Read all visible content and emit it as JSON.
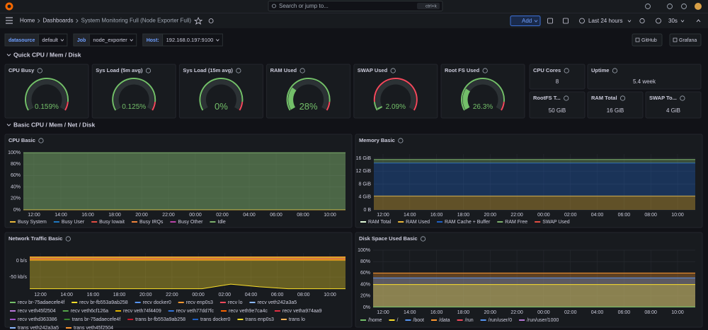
{
  "topbar": {
    "search": "Search or jump to...",
    "shortcut": "ctrl+k"
  },
  "breadcrumb": [
    "Home",
    "Dashboards",
    "System Monitoring Full (Node Exporter Full)"
  ],
  "toolbar": {
    "add": "Add",
    "time_range": "Last 24 hours",
    "refresh": "30s"
  },
  "variables": [
    {
      "label": "datasource",
      "value": "default"
    },
    {
      "label": "Job",
      "value": "node_exporter"
    },
    {
      "label": "Host:",
      "value": "192.168.0.197:9100"
    }
  ],
  "links": [
    "GitHub",
    "Grafana"
  ],
  "rows": [
    "Quick CPU / Mem / Disk",
    "Basic CPU / Mem / Net / Disk"
  ],
  "gauges": [
    {
      "title": "CPU Busy",
      "value": 0.159,
      "label": "0.159%",
      "color": "#73bf69",
      "thresholds": [
        {
          "color": "#73bf69",
          "from": 0
        },
        {
          "color": "#f2495c",
          "from": 90
        }
      ]
    },
    {
      "title": "Sys Load (5m avg)",
      "value": 0.125,
      "label": "0.125%",
      "color": "#73bf69",
      "thresholds": [
        {
          "color": "#73bf69",
          "from": 0
        },
        {
          "color": "#f2495c",
          "from": 90
        }
      ]
    },
    {
      "title": "Sys Load (15m avg)",
      "value": 0,
      "label": "0%",
      "color": "#73bf69",
      "thresholds": [
        {
          "color": "#73bf69",
          "from": 0
        },
        {
          "color": "#f2495c",
          "from": 90
        }
      ]
    },
    {
      "title": "RAM Used",
      "value": 28,
      "label": "28%",
      "color": "#73bf69",
      "thresholds": [
        {
          "color": "#73bf69",
          "from": 0
        },
        {
          "color": "#f2495c",
          "from": 90
        }
      ]
    },
    {
      "title": "SWAP Used",
      "value": 2.09,
      "label": "2.09%",
      "color": "#73bf69",
      "thresholds": [
        {
          "color": "#73bf69",
          "from": 0
        },
        {
          "color": "#f2495c",
          "from": 10
        }
      ]
    },
    {
      "title": "Root FS Used",
      "value": 26.3,
      "label": "26.3%",
      "color": "#73bf69",
      "thresholds": [
        {
          "color": "#73bf69",
          "from": 0
        },
        {
          "color": "#f2495c",
          "from": 90
        }
      ]
    }
  ],
  "stats": [
    {
      "title": "CPU Cores",
      "value": "8"
    },
    {
      "title": "Uptime",
      "value": "5.4 week"
    },
    {
      "title": "RootFS T...",
      "value": "50 GiB"
    },
    {
      "title": "RAM Total",
      "value": "16 GiB"
    },
    {
      "title": "SWAP To...",
      "value": "4 GiB"
    }
  ],
  "panels": [
    {
      "title": "CPU Basic",
      "stacked": true,
      "x": [
        "12:00",
        "14:00",
        "16:00",
        "18:00",
        "20:00",
        "22:00",
        "00:00",
        "02:00",
        "04:00",
        "06:00",
        "08:00",
        "10:00"
      ],
      "ylim": [
        0,
        100
      ],
      "yticks": [
        {
          "value": 0,
          "label": "0%"
        },
        {
          "value": 20,
          "label": "20%"
        },
        {
          "value": 40,
          "label": "40%"
        },
        {
          "value": 60,
          "label": "60%"
        },
        {
          "value": 80,
          "label": "80%"
        },
        {
          "value": 100,
          "label": "100%"
        }
      ],
      "legend": [
        {
          "name": "Busy System",
          "color": "#eab839"
        },
        {
          "name": "Busy User",
          "color": "#1f78c1"
        },
        {
          "name": "Busy Iowait",
          "color": "#e24d42"
        },
        {
          "name": "Busy IRQs",
          "color": "#ef843c"
        },
        {
          "name": "Busy Other",
          "color": "#ba43a9"
        },
        {
          "name": "Idle",
          "color": "#7eb26d"
        }
      ],
      "series": [
        {
          "legend": 0,
          "values": [
            0.1,
            0.1,
            0.1,
            0.1,
            0.1,
            0.1,
            0.1,
            0.1,
            0.1,
            0.1,
            0.1,
            0.1
          ]
        },
        {
          "legend": 5,
          "values": [
            99.8,
            99.8,
            99.8,
            99.8,
            99.8,
            99.8,
            99.8,
            99.8,
            99.8,
            99.8,
            99.8,
            99.8
          ]
        }
      ]
    },
    {
      "title": "Memory Basic",
      "stacked": true,
      "x": [
        "12:00",
        "14:00",
        "16:00",
        "18:00",
        "20:00",
        "22:00",
        "00:00",
        "02:00",
        "04:00",
        "06:00",
        "08:00",
        "10:00"
      ],
      "ylim": [
        0,
        17.3
      ],
      "yticks": [
        {
          "value": 0,
          "label": "0 B"
        },
        {
          "value": 4,
          "label": "4 GiB"
        },
        {
          "value": 8,
          "label": "8 GiB"
        },
        {
          "value": 12,
          "label": "12 GiB"
        },
        {
          "value": 16,
          "label": "16 GiB"
        }
      ],
      "legend": [
        {
          "name": "RAM Total",
          "color": "#e0f9d7"
        },
        {
          "name": "RAM Used",
          "color": "#eab839"
        },
        {
          "name": "RAM Cache + Buffer",
          "color": "#1f60c4"
        },
        {
          "name": "RAM Free",
          "color": "#7eb26d"
        },
        {
          "name": "SWAP Used",
          "color": "#e24d42"
        }
      ],
      "series": [
        {
          "legend": 1,
          "values": [
            4.3,
            4.3,
            4.3,
            4.3,
            4.3,
            4.3,
            4.3,
            4.3,
            4.3,
            4.3,
            4.3,
            4.3
          ]
        },
        {
          "legend": 2,
          "values": [
            10.2,
            10.2,
            10.2,
            10.2,
            10.2,
            10.2,
            10.2,
            10.2,
            10.2,
            10.2,
            10.2,
            10.2
          ]
        },
        {
          "legend": 3,
          "values": [
            1.1,
            1.1,
            1.1,
            1.1,
            1.1,
            1.1,
            1.1,
            1.1,
            1.1,
            1.1,
            1.1,
            1.1
          ]
        }
      ]
    },
    {
      "title": "Network Traffic Basic",
      "stacked": false,
      "x": [
        "12:00",
        "14:00",
        "16:00",
        "18:00",
        "20:00",
        "22:00",
        "00:00",
        "02:00",
        "04:00",
        "06:00",
        "08:00",
        "10:00"
      ],
      "ylim": [
        -89,
        24
      ],
      "yticks": [
        {
          "value": -50,
          "label": "-50 kb/s"
        },
        {
          "value": 0,
          "label": "0 b/s"
        }
      ],
      "legend": [
        {
          "name": "recv br-75adaecefe4f",
          "color": "#73bf69"
        },
        {
          "name": "recv br-fb553a9ab258",
          "color": "#fade2a"
        },
        {
          "name": "recv docker0",
          "color": "#5794f2"
        },
        {
          "name": "recv enp0s3",
          "color": "#ff9830"
        },
        {
          "name": "recv lo",
          "color": "#f2495c"
        },
        {
          "name": "recv veth242a3a5",
          "color": "#8ab8ff"
        },
        {
          "name": "recv veth45f2504",
          "color": "#b877d9"
        },
        {
          "name": "recv veth6cf126a",
          "color": "#56a64b"
        },
        {
          "name": "recv veth74f4409",
          "color": "#e0b400"
        },
        {
          "name": "recv veth77dd7fc",
          "color": "#3274d9"
        },
        {
          "name": "recv veth9e7ca4c",
          "color": "#fa6400"
        },
        {
          "name": "recv vetha974aa9",
          "color": "#e02f44"
        },
        {
          "name": "recv vethd363386",
          "color": "#a352cc"
        },
        {
          "name": "trans br-75adaecefe4f",
          "color": "#37872d"
        },
        {
          "name": "trans br-fb553a9ab258",
          "color": "#c4162a"
        },
        {
          "name": "trans docker0",
          "color": "#1f60c4"
        },
        {
          "name": "trans enp0s3",
          "color": "#fade2a"
        },
        {
          "name": "trans lo",
          "color": "#ffb357"
        },
        {
          "name": "trans veth242a3a5",
          "color": "#8ab8ff"
        },
        {
          "name": "trans veth45f2504",
          "color": "#ff9830"
        }
      ],
      "series": [
        {
          "legend": 16,
          "values": [
            -86,
            -86,
            -86,
            -86,
            -86,
            -86,
            -86,
            -72,
            -80,
            -86,
            -86,
            -86
          ]
        },
        {
          "legend": 3,
          "values": [
            12,
            12,
            12,
            12,
            12,
            12,
            12,
            12,
            12,
            12,
            12,
            12
          ]
        },
        {
          "legend": 1,
          "values": [
            9,
            9,
            9,
            9,
            9,
            9,
            9,
            9,
            9,
            9,
            9,
            9
          ]
        },
        {
          "legend": 4,
          "values": [
            6,
            6,
            6,
            6,
            6,
            6,
            6,
            6,
            6,
            6,
            6,
            6
          ]
        },
        {
          "legend": 8,
          "values": [
            3,
            3,
            3,
            3,
            3,
            3,
            3,
            3,
            3,
            3,
            3,
            3
          ]
        }
      ]
    },
    {
      "title": "Disk Space Used Basic",
      "stacked": false,
      "x": [
        "12:00",
        "14:00",
        "16:00",
        "18:00",
        "20:00",
        "22:00",
        "00:00",
        "02:00",
        "04:00",
        "06:00",
        "08:00",
        "10:00"
      ],
      "ylim": [
        0,
        100
      ],
      "yticks": [
        {
          "value": 0,
          "label": "0%"
        },
        {
          "value": 20,
          "label": "20%"
        },
        {
          "value": 40,
          "label": "40%"
        },
        {
          "value": 60,
          "label": "60%"
        },
        {
          "value": 80,
          "label": "80%"
        },
        {
          "value": 100,
          "label": "100%"
        }
      ],
      "legend": [
        {
          "name": "/home",
          "color": "#73bf69"
        },
        {
          "name": "/",
          "color": "#fade2a"
        },
        {
          "name": "/boot",
          "color": "#5794f2"
        },
        {
          "name": "/data",
          "color": "#ff9830"
        },
        {
          "name": "/run",
          "color": "#f2495c"
        },
        {
          "name": "/run/user/0",
          "color": "#5794f2"
        },
        {
          "name": "/run/user/1000",
          "color": "#b877d9"
        }
      ],
      "series": [
        {
          "legend": 3,
          "values": [
            60,
            60,
            60,
            60,
            60,
            60,
            60,
            60,
            60,
            60,
            60,
            60
          ]
        },
        {
          "legend": 2,
          "values": [
            51.5,
            51.5,
            51.5,
            51.5,
            51.5,
            51.5,
            51.5,
            51.5,
            51.5,
            51.5,
            51.5,
            51.5
          ]
        },
        {
          "legend": 1,
          "values": [
            40,
            40,
            40,
            40,
            40,
            40,
            40,
            40,
            40,
            40,
            40,
            40
          ]
        },
        {
          "legend": 0,
          "values": [
            1,
            1,
            1,
            1,
            1,
            1,
            1,
            1,
            1,
            1,
            1,
            1
          ]
        }
      ]
    }
  ]
}
